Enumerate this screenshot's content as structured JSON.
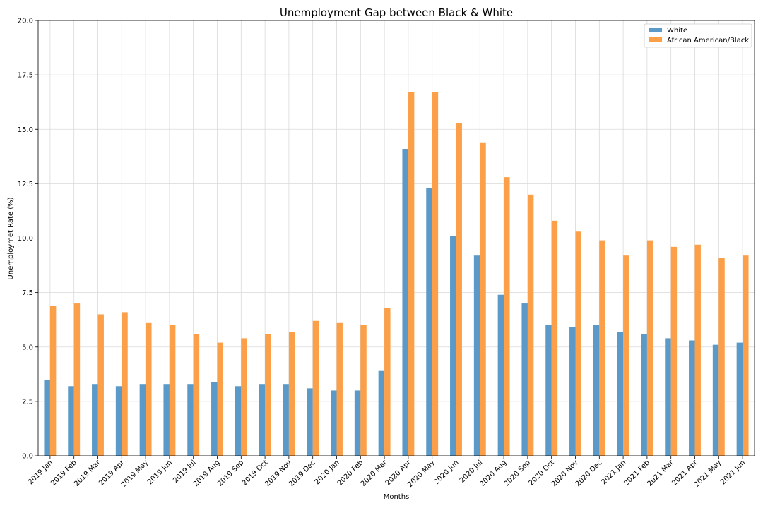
{
  "chart_data": {
    "type": "bar",
    "title": "Unemployment Gap between Black & White",
    "xlabel": "Months",
    "ylabel": "Unemploymet Rate (%)",
    "ylim": [
      0,
      20
    ],
    "yticks": [
      "0.0",
      "2.5",
      "5.0",
      "7.5",
      "10.0",
      "12.5",
      "15.0",
      "17.5",
      "20.0"
    ],
    "grid": true,
    "legend_position": "top-right",
    "categories": [
      "2019 Jan",
      "2019 Feb",
      "2019 Mar",
      "2019 Apr",
      "2019 May",
      "2019 Jun",
      "2019 Jul",
      "2019 Aug",
      "2019 Sep",
      "2019 Oct",
      "2019 Nov",
      "2019 Dec",
      "2020 Jan",
      "2020 Feb",
      "2020 Mar",
      "2020 Apr",
      "2020 May",
      "2020 Jun",
      "2020 Jul",
      "2020 Aug",
      "2020 Sep",
      "2020 Oct",
      "2020 Nov",
      "2020 Dec",
      "2021 Jan",
      "2021 Feb",
      "2021 Mar",
      "2021 Apr",
      "2021 May",
      "2021 Jun"
    ],
    "series": [
      {
        "name": "White",
        "color": "#5b9ac8",
        "values": [
          3.5,
          3.2,
          3.3,
          3.2,
          3.3,
          3.3,
          3.3,
          3.4,
          3.2,
          3.3,
          3.3,
          3.1,
          3.0,
          3.0,
          3.9,
          14.1,
          12.3,
          10.1,
          9.2,
          7.4,
          7.0,
          6.0,
          5.9,
          6.0,
          5.7,
          5.6,
          5.4,
          5.3,
          5.1,
          5.2
        ]
      },
      {
        "name": "African American/Black",
        "color": "#fb9f49",
        "values": [
          6.9,
          7.0,
          6.5,
          6.6,
          6.1,
          6.0,
          5.6,
          5.2,
          5.4,
          5.6,
          5.7,
          6.2,
          6.1,
          6.0,
          6.8,
          16.7,
          16.7,
          15.3,
          14.4,
          12.8,
          12.0,
          10.8,
          10.3,
          9.9,
          9.2,
          9.9,
          9.6,
          9.7,
          9.1,
          9.2
        ]
      }
    ]
  }
}
